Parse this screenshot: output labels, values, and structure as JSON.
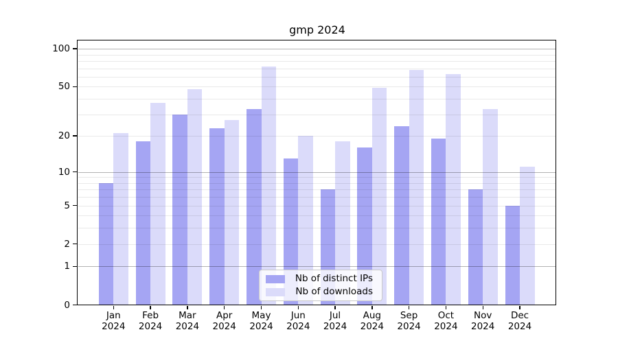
{
  "title": "gmp 2024",
  "chart_data": {
    "type": "bar",
    "title": "gmp 2024",
    "categories": [
      "Jan",
      "Feb",
      "Mar",
      "Apr",
      "May",
      "Jun",
      "Jul",
      "Aug",
      "Sep",
      "Oct",
      "Nov",
      "Dec"
    ],
    "year": "2024",
    "series": [
      {
        "name": "Nb of distinct IPs",
        "color": "#a5a5f3",
        "values": [
          8,
          18,
          30,
          23,
          33,
          13,
          7,
          16,
          24,
          19,
          7,
          5
        ]
      },
      {
        "name": "Nb of downloads",
        "color": "#dbdbfa",
        "values": [
          21,
          37,
          48,
          27,
          72,
          20,
          18,
          49,
          68,
          63,
          33,
          11
        ]
      }
    ],
    "xlabel": "",
    "ylabel": "",
    "yscale": "log(1+value)",
    "ylim": [
      0,
      112
    ],
    "ytick_values": [
      0,
      1,
      2,
      5,
      10,
      20,
      50,
      100
    ],
    "ytick_labels": [
      "0",
      "1",
      "2",
      "5",
      "10",
      "20",
      "50",
      "100"
    ],
    "major_gridlines": [
      1,
      10,
      100
    ],
    "minor_gridlines": [
      2,
      3,
      4,
      5,
      6,
      7,
      8,
      9,
      20,
      30,
      40,
      50,
      60,
      70,
      80,
      90
    ],
    "grid": true,
    "legend_position": "inside-bottom-center",
    "bar_layout": "grouped-pairs-side-by-side"
  },
  "legend": {
    "items": [
      {
        "label": "Nb of distinct IPs",
        "color": "#a5a5f3"
      },
      {
        "label": "Nb of downloads",
        "color": "#dbdbfa"
      }
    ]
  },
  "colors": {
    "background": "#ffffff",
    "spine": "#000000",
    "major_grid": "rgba(0,0,0,0.30)",
    "minor_grid": "rgba(0,0,0,0.085)",
    "bar_distinct_ips": "#a5a5f3",
    "bar_downloads": "#dbdbfa",
    "legend_bg": "rgba(255,255,255,0.8)"
  }
}
